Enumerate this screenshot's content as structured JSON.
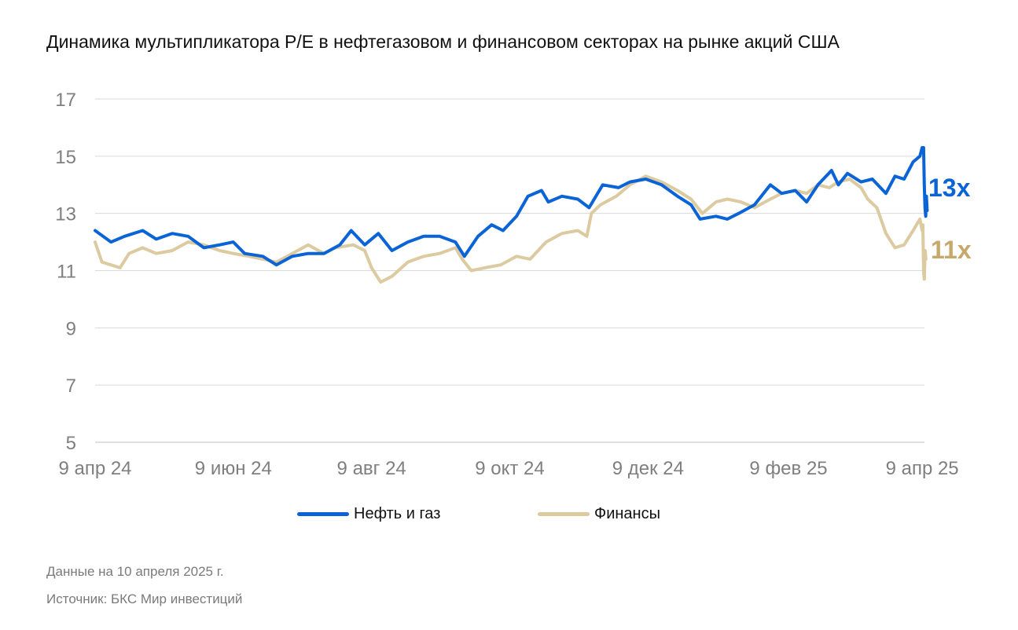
{
  "title": "Динамика мультипликатора P/E в нефтегазовом и финансовом секторах на рынке акций США",
  "footer": {
    "date_note": "Данные на 10 апреля 2025 г.",
    "source": "Источник: БКС Мир инвестиций"
  },
  "colors": {
    "oil_gas": "#0b64d6",
    "finance": "#dccaa0",
    "finance_label": "#c6a96a",
    "grid": "#d9d9d9",
    "axis_text": "#7f7f7f"
  },
  "chart_data": {
    "type": "line",
    "title": "Динамика мультипликатора P/E в нефтегазовом и финансовом секторах на рынке акций США",
    "xlabel": "",
    "ylabel": "",
    "x_range": [
      "2024-04-09",
      "2025-04-10"
    ],
    "x_tick_labels": [
      "9 апр 24",
      "9 июн 24",
      "9 авг 24",
      "9 окт 24",
      "9 дек 24",
      "9 фев 25",
      "9 апр 25"
    ],
    "x_ticks": [
      "2024-04-09",
      "2024-06-09",
      "2024-08-09",
      "2024-10-09",
      "2024-12-09",
      "2025-02-09",
      "2025-04-09"
    ],
    "ylim": [
      5,
      17
    ],
    "y_ticks": [
      5,
      7,
      9,
      11,
      13,
      15,
      17
    ],
    "grid": true,
    "legend_position": "bottom",
    "series": [
      {
        "name": "Нефть и газ",
        "color": "#0b64d6",
        "end_label": "13x",
        "points": [
          [
            "2024-04-09",
            12.4
          ],
          [
            "2024-04-16",
            12.0
          ],
          [
            "2024-04-22",
            12.2
          ],
          [
            "2024-04-30",
            12.4
          ],
          [
            "2024-05-06",
            12.1
          ],
          [
            "2024-05-13",
            12.3
          ],
          [
            "2024-05-20",
            12.2
          ],
          [
            "2024-05-27",
            11.8
          ],
          [
            "2024-06-03",
            11.9
          ],
          [
            "2024-06-09",
            12.0
          ],
          [
            "2024-06-14",
            11.6
          ],
          [
            "2024-06-22",
            11.5
          ],
          [
            "2024-06-28",
            11.2
          ],
          [
            "2024-07-05",
            11.5
          ],
          [
            "2024-07-12",
            11.6
          ],
          [
            "2024-07-19",
            11.6
          ],
          [
            "2024-07-26",
            11.9
          ],
          [
            "2024-07-31",
            12.4
          ],
          [
            "2024-08-06",
            11.9
          ],
          [
            "2024-08-12",
            12.3
          ],
          [
            "2024-08-18",
            11.7
          ],
          [
            "2024-08-25",
            12.0
          ],
          [
            "2024-09-01",
            12.2
          ],
          [
            "2024-09-08",
            12.2
          ],
          [
            "2024-09-15",
            12.0
          ],
          [
            "2024-09-19",
            11.5
          ],
          [
            "2024-09-25",
            12.2
          ],
          [
            "2024-10-01",
            12.6
          ],
          [
            "2024-10-06",
            12.4
          ],
          [
            "2024-10-12",
            12.9
          ],
          [
            "2024-10-17",
            13.6
          ],
          [
            "2024-10-23",
            13.8
          ],
          [
            "2024-10-26",
            13.4
          ],
          [
            "2024-11-01",
            13.6
          ],
          [
            "2024-11-08",
            13.5
          ],
          [
            "2024-11-13",
            13.2
          ],
          [
            "2024-11-19",
            14.0
          ],
          [
            "2024-11-26",
            13.9
          ],
          [
            "2024-12-01",
            14.1
          ],
          [
            "2024-12-08",
            14.2
          ],
          [
            "2024-12-15",
            14.0
          ],
          [
            "2024-12-22",
            13.6
          ],
          [
            "2024-12-28",
            13.3
          ],
          [
            "2025-01-01",
            12.8
          ],
          [
            "2025-01-08",
            12.9
          ],
          [
            "2025-01-13",
            12.8
          ],
          [
            "2025-01-18",
            13.0
          ],
          [
            "2025-01-25",
            13.3
          ],
          [
            "2025-02-01",
            14.0
          ],
          [
            "2025-02-06",
            13.7
          ],
          [
            "2025-02-12",
            13.8
          ],
          [
            "2025-02-17",
            13.4
          ],
          [
            "2025-02-22",
            14.0
          ],
          [
            "2025-02-28",
            14.5
          ],
          [
            "2025-03-03",
            14.0
          ],
          [
            "2025-03-07",
            14.4
          ],
          [
            "2025-03-13",
            14.1
          ],
          [
            "2025-03-18",
            14.2
          ],
          [
            "2025-03-24",
            13.7
          ],
          [
            "2025-03-28",
            14.3
          ],
          [
            "2025-04-01",
            14.2
          ],
          [
            "2025-04-05",
            14.8
          ],
          [
            "2025-04-08",
            15.0
          ],
          [
            "2025-04-09",
            15.3
          ],
          [
            "2025-04-09",
            15.2
          ],
          [
            "2025-04-09",
            15.3
          ],
          [
            "2025-04-09",
            14.0
          ],
          [
            "2025-04-09",
            13.2
          ],
          [
            "2025-04-09",
            12.9
          ],
          [
            "2025-04-10",
            13.6
          ],
          [
            "2025-04-10",
            13.1
          ]
        ]
      },
      {
        "name": "Финансы",
        "color": "#dccaa0",
        "end_label": "11x",
        "points": [
          [
            "2024-04-09",
            12.0
          ],
          [
            "2024-04-12",
            11.3
          ],
          [
            "2024-04-16",
            11.2
          ],
          [
            "2024-04-20",
            11.1
          ],
          [
            "2024-04-24",
            11.6
          ],
          [
            "2024-04-30",
            11.8
          ],
          [
            "2024-05-06",
            11.6
          ],
          [
            "2024-05-13",
            11.7
          ],
          [
            "2024-05-20",
            12.0
          ],
          [
            "2024-05-27",
            11.9
          ],
          [
            "2024-06-03",
            11.7
          ],
          [
            "2024-06-09",
            11.6
          ],
          [
            "2024-06-16",
            11.5
          ],
          [
            "2024-06-22",
            11.4
          ],
          [
            "2024-06-28",
            11.3
          ],
          [
            "2024-07-05",
            11.6
          ],
          [
            "2024-07-12",
            11.9
          ],
          [
            "2024-07-19",
            11.6
          ],
          [
            "2024-07-24",
            11.8
          ],
          [
            "2024-08-01",
            11.9
          ],
          [
            "2024-08-06",
            11.7
          ],
          [
            "2024-08-09",
            11.1
          ],
          [
            "2024-08-13",
            10.6
          ],
          [
            "2024-08-18",
            10.8
          ],
          [
            "2024-08-25",
            11.3
          ],
          [
            "2024-09-01",
            11.5
          ],
          [
            "2024-09-08",
            11.6
          ],
          [
            "2024-09-15",
            11.8
          ],
          [
            "2024-09-18",
            11.4
          ],
          [
            "2024-09-22",
            11.0
          ],
          [
            "2024-09-28",
            11.1
          ],
          [
            "2024-10-05",
            11.2
          ],
          [
            "2024-10-12",
            11.5
          ],
          [
            "2024-10-18",
            11.4
          ],
          [
            "2024-10-25",
            12.0
          ],
          [
            "2024-11-01",
            12.3
          ],
          [
            "2024-11-08",
            12.4
          ],
          [
            "2024-11-12",
            12.2
          ],
          [
            "2024-11-14",
            13.0
          ],
          [
            "2024-11-18",
            13.3
          ],
          [
            "2024-11-25",
            13.6
          ],
          [
            "2024-12-01",
            14.0
          ],
          [
            "2024-12-08",
            14.3
          ],
          [
            "2024-12-15",
            14.1
          ],
          [
            "2024-12-22",
            13.8
          ],
          [
            "2024-12-28",
            13.5
          ],
          [
            "2025-01-02",
            13.0
          ],
          [
            "2025-01-08",
            13.4
          ],
          [
            "2025-01-13",
            13.5
          ],
          [
            "2025-01-19",
            13.4
          ],
          [
            "2025-01-25",
            13.2
          ],
          [
            "2025-02-01",
            13.5
          ],
          [
            "2025-02-06",
            13.7
          ],
          [
            "2025-02-12",
            13.8
          ],
          [
            "2025-02-17",
            13.7
          ],
          [
            "2025-02-22",
            14.0
          ],
          [
            "2025-02-27",
            13.9
          ],
          [
            "2025-03-03",
            14.1
          ],
          [
            "2025-03-08",
            14.2
          ],
          [
            "2025-03-13",
            13.9
          ],
          [
            "2025-03-16",
            13.5
          ],
          [
            "2025-03-20",
            13.2
          ],
          [
            "2025-03-24",
            12.3
          ],
          [
            "2025-03-28",
            11.8
          ],
          [
            "2025-04-01",
            11.9
          ],
          [
            "2025-04-05",
            12.4
          ],
          [
            "2025-04-08",
            12.8
          ],
          [
            "2025-04-09",
            12.4
          ],
          [
            "2025-04-09",
            12.6
          ],
          [
            "2025-04-09",
            11.0
          ],
          [
            "2025-04-09",
            10.7
          ],
          [
            "2025-04-10",
            10.9
          ],
          [
            "2025-04-10",
            11.7
          ],
          [
            "2025-04-10",
            11.4
          ]
        ]
      }
    ]
  }
}
